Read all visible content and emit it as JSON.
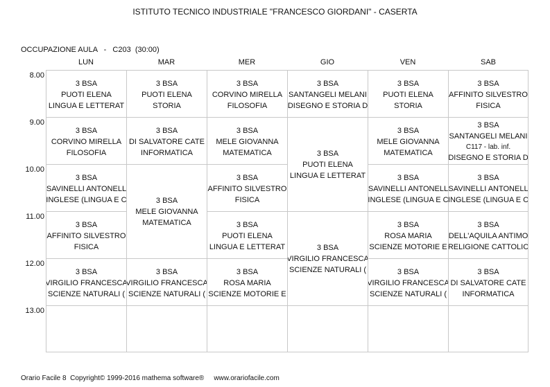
{
  "header": {
    "school": "ISTITUTO TECNICO INDUSTRIALE \"FRANCESCO GIORDANI\" - CASERTA",
    "room_info": "OCCUPAZIONE AULA   -   C203  (30:00)"
  },
  "days": [
    "LUN",
    "MAR",
    "MER",
    "GIO",
    "VEN",
    "SAB"
  ],
  "hours": [
    "8.00",
    "9.00",
    "10.00",
    "11.00",
    "12.00",
    "13.00"
  ],
  "lessons": {
    "lun_1": {
      "class": "3 BSA",
      "teacher": "PUOTI ELENA",
      "subject": "LINGUA E LETTERAT"
    },
    "lun_2": {
      "class": "3 BSA",
      "teacher": "CORVINO MIRELLA",
      "subject": "FILOSOFIA"
    },
    "lun_3": {
      "class": "3 BSA",
      "teacher": "SAVINELLI ANTONELL",
      "subject": "INGLESE (LINGUA E C"
    },
    "lun_4": {
      "class": "3 BSA",
      "teacher": "AFFINITO SILVESTRO",
      "subject": "FISICA"
    },
    "lun_5": {
      "class": "3 BSA",
      "teacher": "VIRGILIO FRANCESCA",
      "subject": "SCIENZE NATURALI ("
    },
    "mar_1": {
      "class": "3 BSA",
      "teacher": "PUOTI ELENA",
      "subject": "STORIA"
    },
    "mar_2": {
      "class": "3 BSA",
      "teacher": "DI SALVATORE CATE",
      "subject": "INFORMATICA"
    },
    "mar_34": {
      "class": "3 BSA",
      "teacher": "MELE GIOVANNA",
      "subject": "MATEMATICA"
    },
    "mar_5": {
      "class": "3 BSA",
      "teacher": "VIRGILIO FRANCESCA",
      "subject": "SCIENZE NATURALI ("
    },
    "mer_1": {
      "class": "3 BSA",
      "teacher": "CORVINO MIRELLA",
      "subject": "FILOSOFIA"
    },
    "mer_2": {
      "class": "3 BSA",
      "teacher": "MELE GIOVANNA",
      "subject": "MATEMATICA"
    },
    "mer_3": {
      "class": "3 BSA",
      "teacher": "AFFINITO SILVESTRO",
      "subject": "FISICA"
    },
    "mer_4": {
      "class": "3 BSA",
      "teacher": "PUOTI ELENA",
      "subject": "LINGUA E LETTERAT"
    },
    "mer_5": {
      "class": "3 BSA",
      "teacher": "ROSA MARIA",
      "subject": "SCIENZE MOTORIE E"
    },
    "gio_1": {
      "class": "3 BSA",
      "teacher": "SANTANGELI MELANI",
      "subject": "DISEGNO E STORIA D"
    },
    "gio_23": {
      "class": "3 BSA",
      "teacher": "PUOTI ELENA",
      "subject": "LINGUA E LETTERAT"
    },
    "gio_45": {
      "class": "3 BSA",
      "teacher": "VIRGILIO FRANCESCA",
      "subject": "SCIENZE NATURALI ("
    },
    "ven_1": {
      "class": "3 BSA",
      "teacher": "PUOTI ELENA",
      "subject": "STORIA"
    },
    "ven_2": {
      "class": "3 BSA",
      "teacher": "MELE GIOVANNA",
      "subject": "MATEMATICA"
    },
    "ven_3": {
      "class": "3 BSA",
      "teacher": "SAVINELLI ANTONELL",
      "subject": "INGLESE (LINGUA E C"
    },
    "ven_4": {
      "class": "3 BSA",
      "teacher": "ROSA MARIA",
      "subject": "SCIENZE MOTORIE E"
    },
    "ven_5": {
      "class": "3 BSA",
      "teacher": "VIRGILIO FRANCESCA",
      "subject": "SCIENZE NATURALI ("
    },
    "sab_1": {
      "class": "3 BSA",
      "teacher": "AFFINITO SILVESTRO",
      "subject": "FISICA"
    },
    "sab_2": {
      "class": "3 BSA",
      "teacher": "SANTANGELI MELANI",
      "room": "C117 - lab. inf.",
      "subject": "DISEGNO E STORIA D"
    },
    "sab_3": {
      "class": "3 BSA",
      "teacher": "SAVINELLI ANTONELL",
      "subject": "INGLESE (LINGUA E C"
    },
    "sab_4": {
      "class": "3 BSA",
      "teacher": "DELL'AQUILA ANTIMO",
      "subject": "RELIGIONE CATTOLIC"
    },
    "sab_5": {
      "class": "3 BSA",
      "teacher": "DI SALVATORE CATE",
      "subject": "INFORMATICA"
    }
  },
  "footer": {
    "product": "Orario Facile 8  Copyright© 1999-2016 mathema software®",
    "website": "www.orariofacile.com"
  }
}
